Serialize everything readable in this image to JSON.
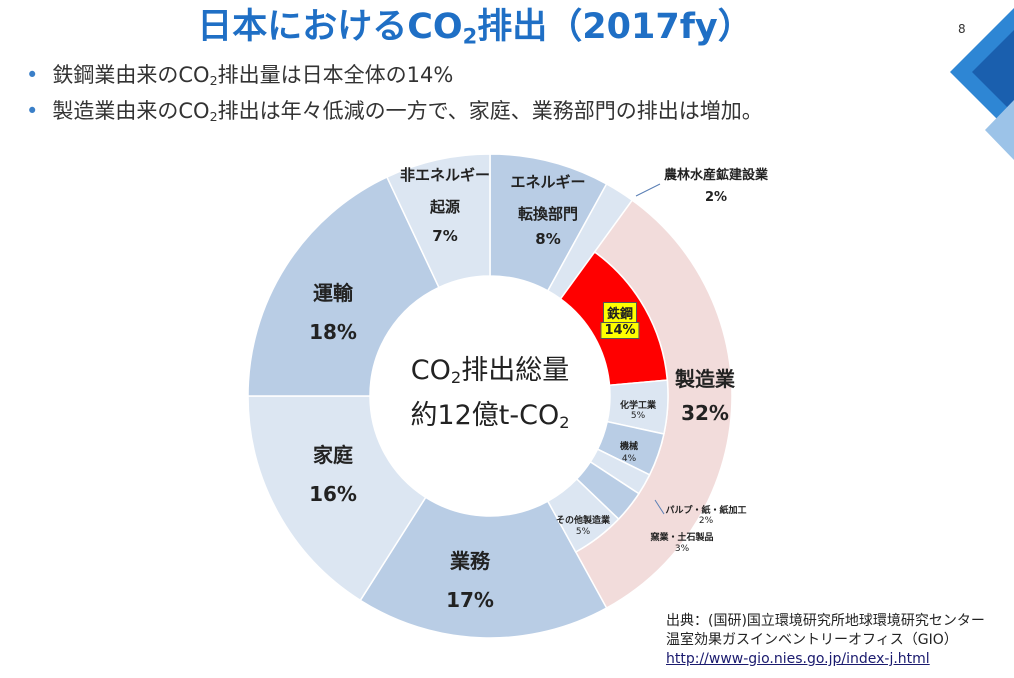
{
  "page_number": "8",
  "title": {
    "before": "日本におけるCO",
    "sub": "2",
    "after": "排出（2017fy）"
  },
  "bullets": [
    {
      "before": "鉄鋼業由来のCO",
      "sub": "2",
      "after": "排出量は日本全体の14%"
    },
    {
      "before": "製造業由来のCO",
      "sub": "2",
      "after": "排出は年々低減の一方で、家庭、業務部門の排出は増加。"
    }
  ],
  "center_text": [
    {
      "before": "CO",
      "sub": "2",
      "after": "排出総量"
    },
    {
      "before": "約12億t-CO",
      "sub": "2",
      "after": ""
    }
  ],
  "source": [
    "出典：(国研)国立環境研究所地球環境研究センター",
    "温室効果ガスインベントリーオフィス（GIO）",
    "http://www-gio.nies.go.jp/index-j.html"
  ],
  "chart_data": {
    "type": "donut",
    "categories": [
      "エネルギー\n転換部門",
      "農林水産鉱建設業",
      "製造業",
      "業務",
      "家庭",
      "運輸",
      "非エネルギー\n起源"
    ],
    "values": [
      8,
      2,
      32,
      17,
      16,
      18,
      7
    ],
    "value_labels": [
      "8%",
      "2%",
      "32%",
      "17%",
      "16%",
      "18%",
      "7%"
    ],
    "colors": [
      "#b9cde5",
      "#dce6f2",
      "#f2dcdb",
      "#b9cde5",
      "#dce6f2",
      "#b9cde5",
      "#dce6f2"
    ],
    "breakdown": {
      "categories": [
        "鉄鋼",
        "化学工業",
        "機械",
        "パルプ・紙・紙加工",
        "窯業・土石製品",
        "その他製造業"
      ],
      "values": [
        14,
        5,
        4,
        2,
        3,
        5
      ],
      "value_labels": [
        "14%",
        "5%",
        "4%",
        "2%",
        "3%",
        "5%"
      ],
      "colors": [
        "#ff0000",
        "#dce6f2",
        "#b9cde5",
        "#dce6f2",
        "#b9cde5",
        "#dce6f2"
      ]
    }
  }
}
